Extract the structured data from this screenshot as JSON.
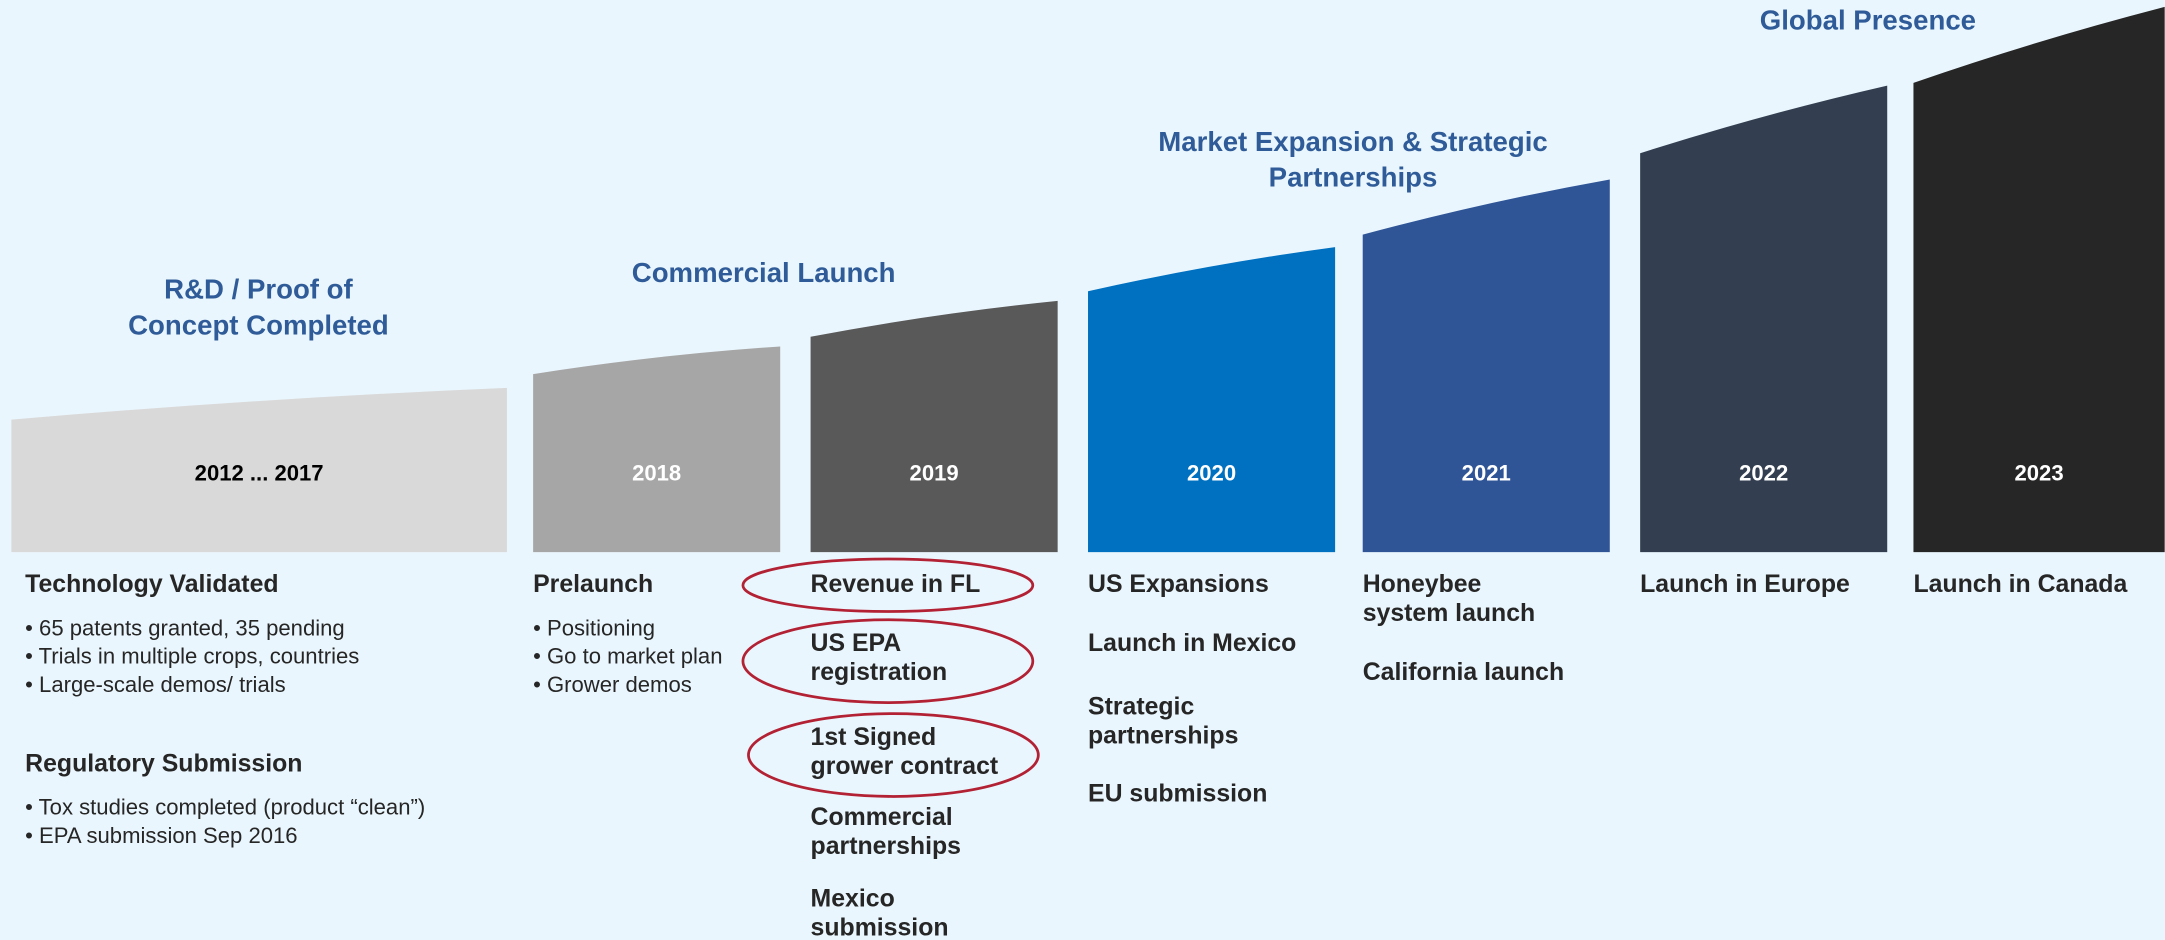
{
  "phases": [
    {
      "lines": [
        "R&D / Proof of",
        "Concept Completed"
      ]
    },
    {
      "lines": [
        "Commercial Launch"
      ]
    },
    {
      "lines": [
        "Market Expansion & Strategic",
        "Partnerships"
      ]
    },
    {
      "lines": [
        "Global Presence"
      ]
    }
  ],
  "columns": [
    {
      "year": "2012  ...  2017",
      "items": [
        {
          "lines": [
            "Technology Validated"
          ],
          "bullets": [
            "• 65 patents granted, 35 pending",
            "• Trials in multiple crops, countries",
            "• Large-scale demos/ trials"
          ]
        },
        {
          "lines": [
            "Regulatory Submission"
          ],
          "bullets": [
            "• Tox studies completed (product “clean”)",
            "• EPA submission Sep 2016"
          ]
        }
      ]
    },
    {
      "year": "2018",
      "items": [
        {
          "lines": [
            "Prelaunch"
          ],
          "bullets": [
            "• Positioning",
            "• Go to market plan",
            "• Grower demos"
          ]
        }
      ]
    },
    {
      "year": "2019",
      "items": [
        {
          "lines": [
            "Revenue in FL"
          ]
        },
        {
          "lines": [
            "US EPA",
            "registration"
          ]
        },
        {
          "lines": [
            "1st Signed",
            "grower contract"
          ]
        },
        {
          "lines": [
            "Commercial",
            "partnerships"
          ]
        },
        {
          "lines": [
            "Mexico",
            "submission"
          ]
        }
      ]
    },
    {
      "year": "2020",
      "items": [
        {
          "lines": [
            "US Expansions"
          ]
        },
        {
          "lines": [
            "Launch in Mexico"
          ]
        },
        {
          "lines": [
            "Strategic",
            "partnerships"
          ]
        },
        {
          "lines": [
            "EU submission"
          ]
        }
      ]
    },
    {
      "year": "2021",
      "items": [
        {
          "lines": [
            "Honeybee",
            "system launch"
          ]
        },
        {
          "lines": [
            "California launch"
          ]
        }
      ]
    },
    {
      "year": "2022",
      "items": [
        {
          "lines": [
            "Launch in Europe"
          ]
        }
      ]
    },
    {
      "year": "2023",
      "items": [
        {
          "lines": [
            "Launch in Canada"
          ]
        }
      ]
    }
  ]
}
